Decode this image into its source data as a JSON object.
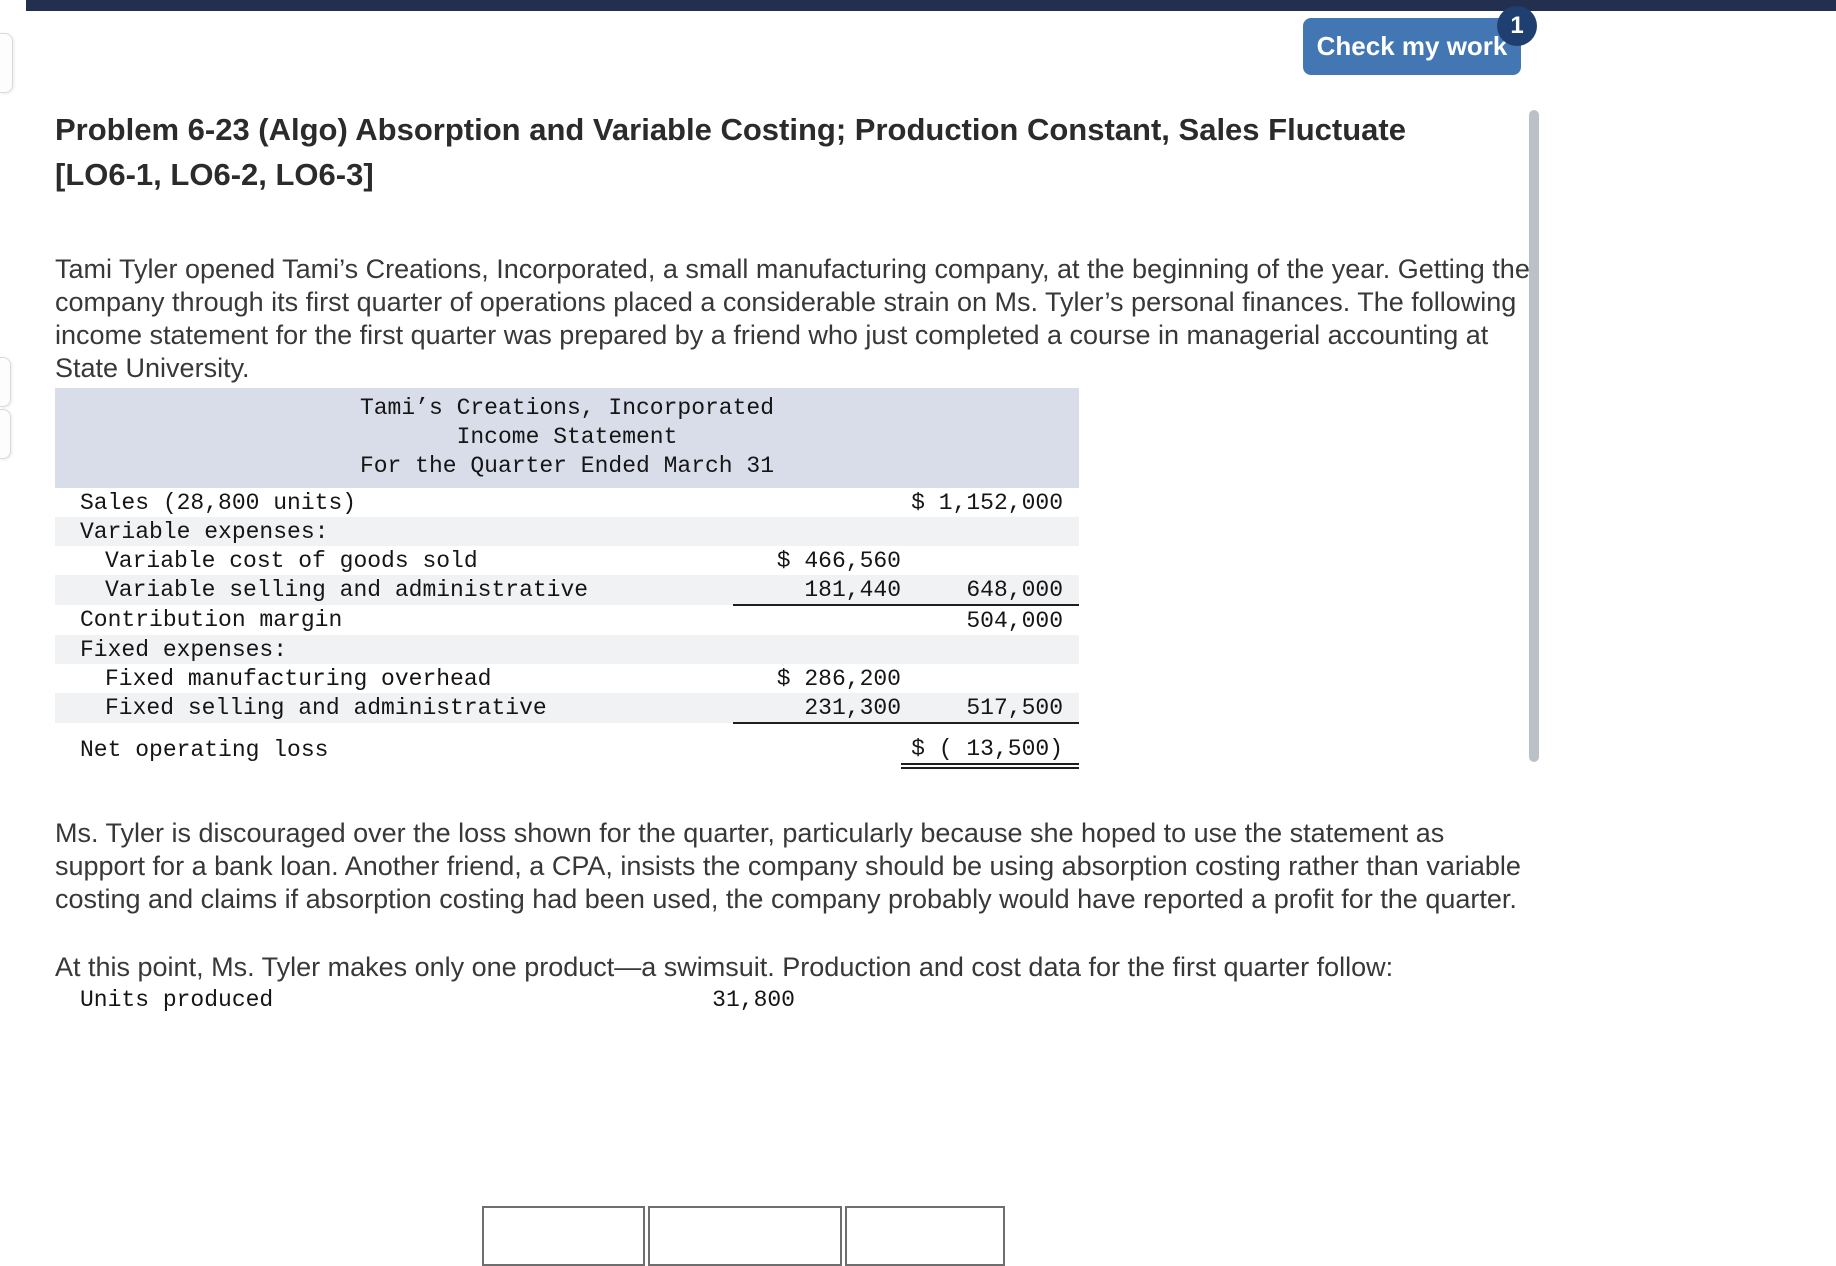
{
  "page": {
    "attempt_badge": "1",
    "check_my_work_label": "Check my work"
  },
  "problem": {
    "title": "Problem 6-23 (Algo) Absorption and Variable Costing; Production Constant, Sales Fluctuate [LO6-1, LO6-2, LO6-3]",
    "paragraph1": "Tami Tyler opened Tami’s Creations, Incorporated, a small manufacturing company, at the beginning of the year. Getting the company through its first quarter of operations placed a considerable strain on Ms. Tyler’s personal finances. The following income statement for the first quarter was prepared by a friend who just completed a course in managerial accounting at State University.",
    "paragraph2": "Ms. Tyler is discouraged over the loss shown for the quarter, particularly because she hoped to use the statement as support for a bank loan. Another friend, a CPA, insists the company should be using absorption costing rather than variable costing and claims if absorption costing had been used, the company probably would have reported a profit for the quarter.",
    "paragraph3": "At this point, Ms. Tyler makes only one product—a swimsuit. Production and cost data for the first quarter follow:"
  },
  "income_statement": {
    "header_lines": [
      "Tami’s Creations, Incorporated",
      "Income Statement",
      "For the Quarter Ended March 31"
    ],
    "rows": [
      {
        "label": "Sales (28,800 units)",
        "indent": 0,
        "col1": "",
        "col2": "$ 1,152,000",
        "shade": false
      },
      {
        "label": "Variable expenses:",
        "indent": 0,
        "col1": "",
        "col2": "",
        "shade": true
      },
      {
        "label": "Variable cost of goods sold",
        "indent": 1,
        "col1": "$ 466,560",
        "col2": "",
        "shade": false
      },
      {
        "label": "Variable selling and administrative",
        "indent": 1,
        "col1": "181,440",
        "col2": "648,000",
        "shade": true,
        "rule_col1": true,
        "rule_col2": true
      },
      {
        "label": "Contribution margin",
        "indent": 0,
        "col1": "",
        "col2": "504,000",
        "shade": false
      },
      {
        "label": "Fixed expenses:",
        "indent": 0,
        "col1": "",
        "col2": "",
        "shade": true
      },
      {
        "label": "Fixed manufacturing overhead",
        "indent": 1,
        "col1": "$ 286,200",
        "col2": "",
        "shade": false
      },
      {
        "label": "Fixed selling and administrative",
        "indent": 1,
        "col1": "231,300",
        "col2": "517,500",
        "shade": true,
        "rule_col1": true,
        "rule_col2": true
      },
      {
        "label": "Net operating loss",
        "indent": 0,
        "col1": "",
        "col2": "$ ( 13,500)",
        "shade": false,
        "double_col2": true,
        "gap": true
      }
    ]
  },
  "production_table": {
    "rows": [
      {
        "label": "Units produced",
        "value": "31,800"
      }
    ]
  },
  "colors": {
    "accent_blue": "#4377b4",
    "badge_navy": "#1f3f70",
    "table_header_bg": "#d8dde9",
    "stripe_bg": "#f1f2f4"
  }
}
